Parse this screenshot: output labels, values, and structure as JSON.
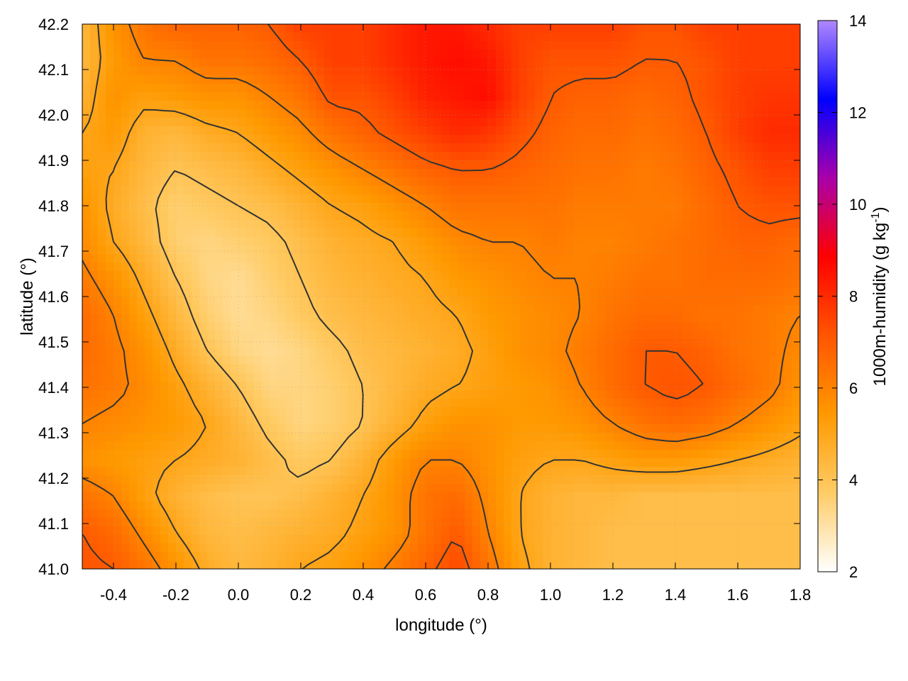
{
  "chart_data": {
    "type": "heatmap",
    "title": "",
    "xlabel": "longitude (°)",
    "ylabel": "latitude (°)",
    "colorbar_label_main": "1000m-humidity (g kg",
    "colorbar_label_exp": "-1",
    "colorbar_label_end": ")",
    "xlim": [
      -0.5,
      1.8
    ],
    "ylim": [
      41.0,
      42.2
    ],
    "xticks": [
      "-0.4",
      "-0.2",
      "0.0",
      "0.2",
      "0.4",
      "0.6",
      "0.8",
      "1.0",
      "1.2",
      "1.4",
      "1.6",
      "1.8"
    ],
    "yticks": [
      "41.0",
      "41.1",
      "41.2",
      "41.3",
      "41.4",
      "41.5",
      "41.6",
      "41.7",
      "41.8",
      "41.9",
      "42.0",
      "42.1",
      "42.2"
    ],
    "colorbar_range": [
      2,
      14
    ],
    "colorbar_ticks": [
      "2",
      "4",
      "6",
      "8",
      "10",
      "12",
      "14"
    ],
    "colormap": [
      "#ffffff",
      "#ffcc66",
      "#ff9900",
      "#ff5500",
      "#ff0000",
      "#aa00aa",
      "#0000ff",
      "#b088ff"
    ],
    "grid": true,
    "contour_color": "#333333",
    "field": [
      [
        4.4,
        5.6,
        6.4,
        6.8,
        6.8,
        6.8,
        7.0,
        7.6,
        7.6,
        7.6,
        8.0,
        8.4,
        8.4,
        8.0,
        7.6,
        7.6,
        7.6,
        7.6,
        7.2,
        7.2,
        7.6,
        7.6,
        7.6,
        7.6
      ],
      [
        4.4,
        5.4,
        6.0,
        6.0,
        6.4,
        6.4,
        6.6,
        7.0,
        7.6,
        7.6,
        8.0,
        8.4,
        8.6,
        8.4,
        7.6,
        7.2,
        7.2,
        7.2,
        7.0,
        7.0,
        7.2,
        7.6,
        7.6,
        7.6
      ],
      [
        4.6,
        5.6,
        5.2,
        5.4,
        5.6,
        5.6,
        6.0,
        6.4,
        7.2,
        7.2,
        7.6,
        8.2,
        8.4,
        8.6,
        7.6,
        7.0,
        6.8,
        6.8,
        6.6,
        6.8,
        7.2,
        7.6,
        7.8,
        7.8
      ],
      [
        5.0,
        5.4,
        4.6,
        4.4,
        4.8,
        5.0,
        5.4,
        5.8,
        6.4,
        6.8,
        7.2,
        7.6,
        8.0,
        7.8,
        7.2,
        6.8,
        6.6,
        6.6,
        6.4,
        6.6,
        7.0,
        7.6,
        8.0,
        8.0
      ],
      [
        5.2,
        5.0,
        4.4,
        4.0,
        4.2,
        4.4,
        4.8,
        5.2,
        5.6,
        6.0,
        6.4,
        6.8,
        7.0,
        7.0,
        6.8,
        6.6,
        6.4,
        6.4,
        6.2,
        6.4,
        6.8,
        7.2,
        7.6,
        7.6
      ],
      [
        5.6,
        4.8,
        4.2,
        3.6,
        3.8,
        4.0,
        4.2,
        4.6,
        5.0,
        5.2,
        5.6,
        6.0,
        6.4,
        6.4,
        6.4,
        6.4,
        6.2,
        6.2,
        6.2,
        6.2,
        6.6,
        7.0,
        7.2,
        7.2
      ],
      [
        5.8,
        5.0,
        4.4,
        3.6,
        3.4,
        3.6,
        3.8,
        4.2,
        4.6,
        4.8,
        5.0,
        5.4,
        5.8,
        6.0,
        6.0,
        6.2,
        6.0,
        6.0,
        6.2,
        6.4,
        6.6,
        6.8,
        6.8,
        6.6
      ],
      [
        6.2,
        5.6,
        4.8,
        4.0,
        3.4,
        3.2,
        3.6,
        4.0,
        4.4,
        4.6,
        4.8,
        5.0,
        5.4,
        5.6,
        5.8,
        6.0,
        6.0,
        6.2,
        6.4,
        6.4,
        6.6,
        6.6,
        6.6,
        6.4
      ],
      [
        6.6,
        6.0,
        5.2,
        4.4,
        3.6,
        3.2,
        3.4,
        3.8,
        4.2,
        4.4,
        4.6,
        4.8,
        5.0,
        5.4,
        5.6,
        5.8,
        6.0,
        6.4,
        6.6,
        6.6,
        6.4,
        6.4,
        6.2,
        6.0
      ],
      [
        6.6,
        6.2,
        5.6,
        4.8,
        4.0,
        3.4,
        3.2,
        3.4,
        3.8,
        4.2,
        4.4,
        4.6,
        4.8,
        5.2,
        5.6,
        5.8,
        6.2,
        6.6,
        7.0,
        7.0,
        6.8,
        6.4,
        6.2,
        5.8
      ],
      [
        6.4,
        6.2,
        5.8,
        5.2,
        4.6,
        4.0,
        3.4,
        3.4,
        3.6,
        4.0,
        4.4,
        4.8,
        5.0,
        5.2,
        5.4,
        5.6,
        6.0,
        6.6,
        7.0,
        7.2,
        7.0,
        6.6,
        6.2,
        5.6
      ],
      [
        6.0,
        5.8,
        5.6,
        5.4,
        5.0,
        4.4,
        3.8,
        3.4,
        3.6,
        4.0,
        4.6,
        5.2,
        5.6,
        5.6,
        5.4,
        5.4,
        5.6,
        6.0,
        6.4,
        6.6,
        6.4,
        6.0,
        5.6,
        5.2
      ],
      [
        5.6,
        5.4,
        5.2,
        5.0,
        4.8,
        4.6,
        4.2,
        3.8,
        4.0,
        4.6,
        5.4,
        6.0,
        6.0,
        5.6,
        5.2,
        5.0,
        5.0,
        5.2,
        5.4,
        5.4,
        5.2,
        5.0,
        4.8,
        4.6
      ],
      [
        6.4,
        6.0,
        5.2,
        4.6,
        4.2,
        4.0,
        4.0,
        4.2,
        4.6,
        5.0,
        5.6,
        6.4,
        6.6,
        5.8,
        5.0,
        4.6,
        4.4,
        4.4,
        4.2,
        4.2,
        4.2,
        4.2,
        4.2,
        4.2
      ],
      [
        7.0,
        6.6,
        5.8,
        5.0,
        4.4,
        4.2,
        4.4,
        4.6,
        4.8,
        5.2,
        5.6,
        6.4,
        7.0,
        6.0,
        5.0,
        4.6,
        4.4,
        4.2,
        4.2,
        4.2,
        4.2,
        4.2,
        4.2,
        4.2
      ],
      [
        7.2,
        7.0,
        6.4,
        5.6,
        4.8,
        4.4,
        4.6,
        5.0,
        5.2,
        5.6,
        6.2,
        6.8,
        7.4,
        6.4,
        5.2,
        4.6,
        4.4,
        4.2,
        4.2,
        4.2,
        4.2,
        4.2,
        4.2,
        4.2
      ]
    ]
  }
}
